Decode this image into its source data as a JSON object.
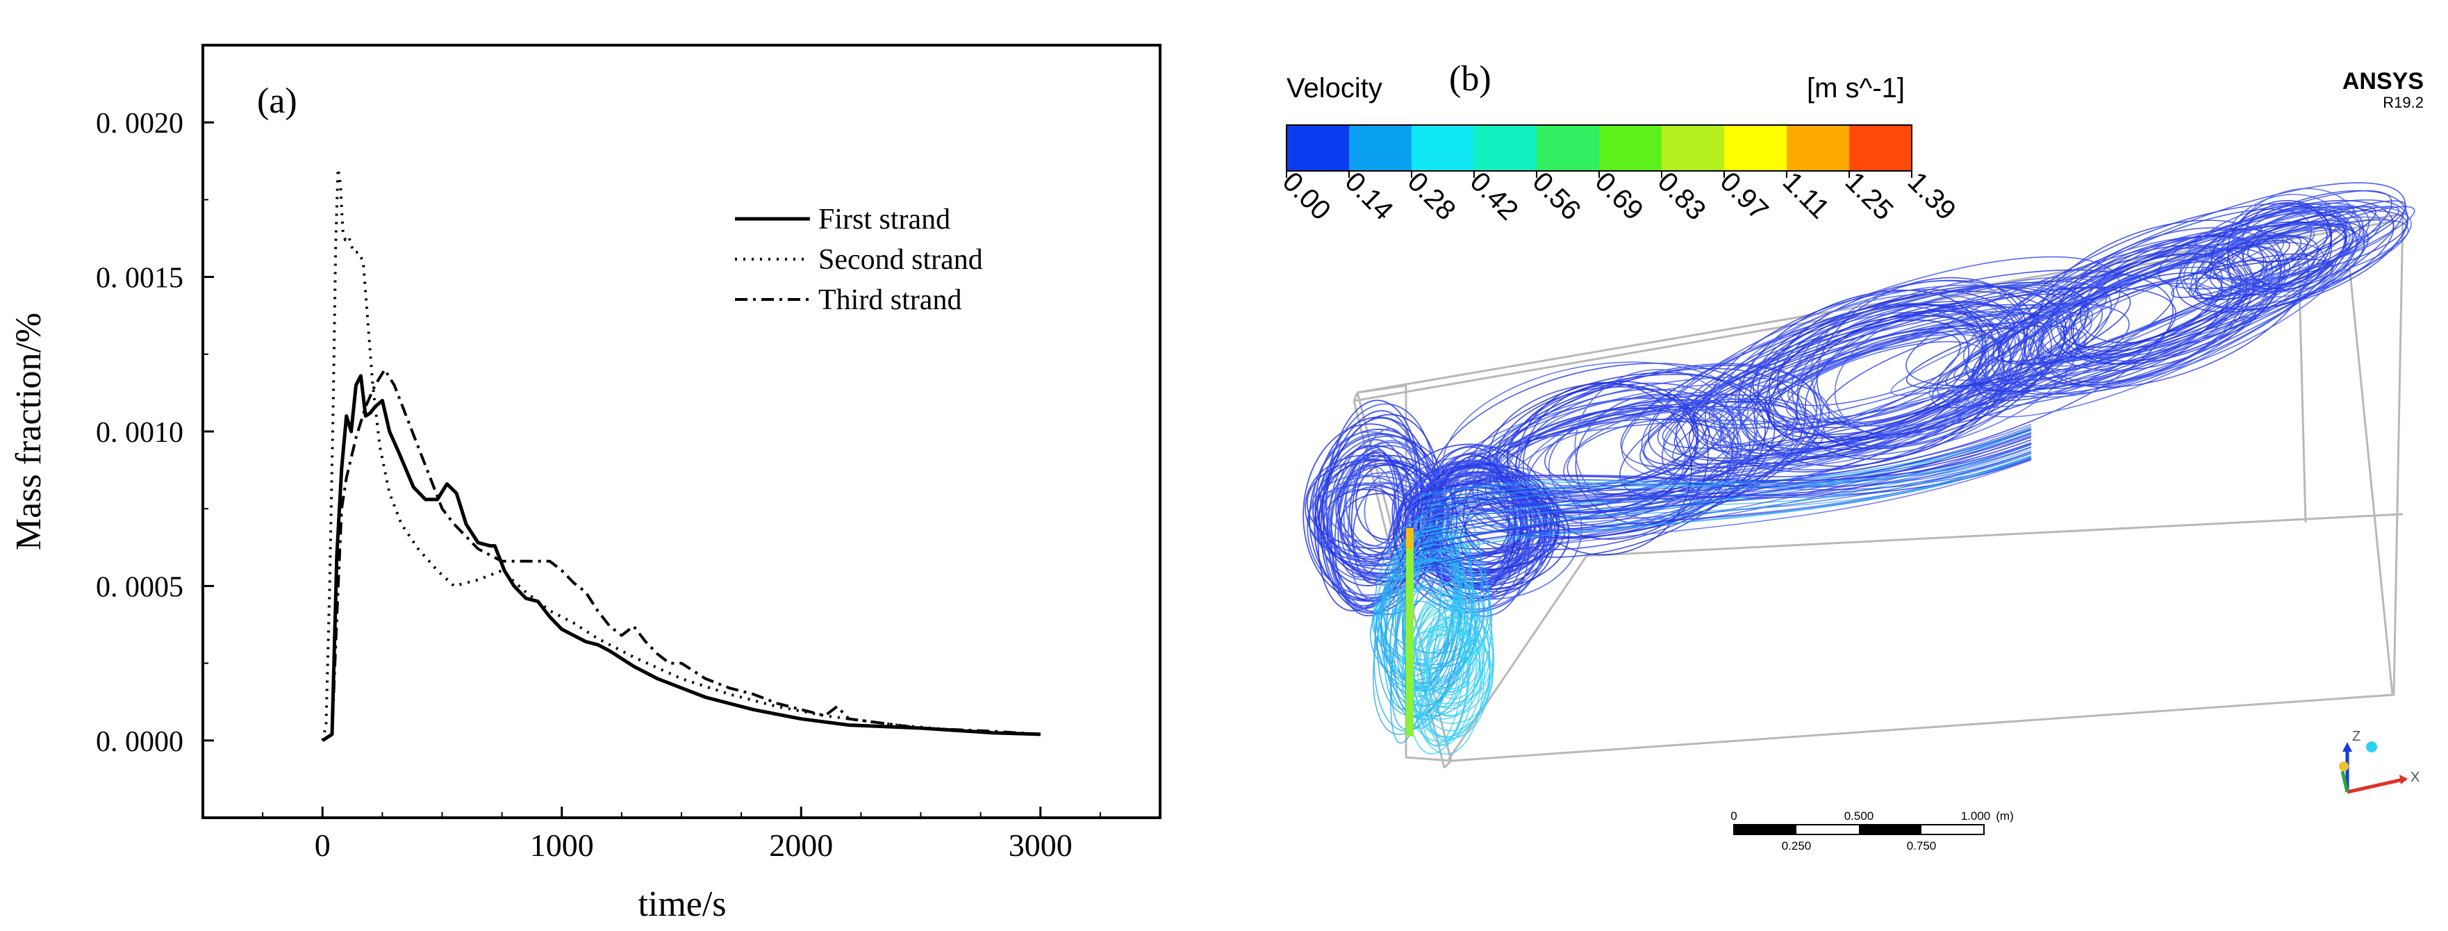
{
  "chart_data": [
    {
      "type": "line",
      "panel_label": "(a)",
      "xlabel": "time/s",
      "ylabel": "Mass fraction/%",
      "xlim": [
        -500,
        3500
      ],
      "ylim": [
        -0.00025,
        0.00225
      ],
      "xticks": [
        0,
        1000,
        2000,
        3000
      ],
      "xtick_labels": [
        "0",
        "1000",
        "2000",
        "3000"
      ],
      "yticks": [
        0.0,
        0.0005,
        0.001,
        0.0015,
        0.002
      ],
      "ytick_labels": [
        "0. 0000",
        "0. 0005",
        "0. 0010",
        "0. 0015",
        "0. 0020"
      ],
      "legend_position": "top-right",
      "series": [
        {
          "name": "First strand",
          "style": "solid",
          "x": [
            0,
            40,
            60,
            80,
            100,
            120,
            140,
            160,
            180,
            200,
            220,
            250,
            280,
            320,
            380,
            430,
            480,
            520,
            560,
            600,
            650,
            700,
            720,
            760,
            800,
            850,
            900,
            950,
            1000,
            1050,
            1100,
            1150,
            1200,
            1300,
            1400,
            1500,
            1600,
            1800,
            2000,
            2200,
            2500,
            2800,
            3000
          ],
          "y": [
            0,
            2e-05,
            0.0006,
            0.00088,
            0.00105,
            0.001,
            0.00115,
            0.00118,
            0.00105,
            0.00106,
            0.00108,
            0.0011,
            0.001,
            0.00093,
            0.00082,
            0.00078,
            0.00078,
            0.00083,
            0.0008,
            0.0007,
            0.00064,
            0.00063,
            0.00063,
            0.00055,
            0.0005,
            0.00046,
            0.00045,
            0.0004,
            0.00036,
            0.00034,
            0.00032,
            0.00031,
            0.00029,
            0.00024,
            0.0002,
            0.00017,
            0.00014,
            0.0001,
            7e-05,
            5e-05,
            4e-05,
            2.5e-05,
            2e-05
          ]
        },
        {
          "name": "Second strand",
          "style": "dotted",
          "x": [
            0,
            15,
            30,
            45,
            55,
            65,
            75,
            85,
            95,
            110,
            130,
            150,
            170,
            190,
            210,
            240,
            280,
            330,
            400,
            480,
            550,
            650,
            750,
            850,
            950,
            1050,
            1150,
            1300,
            1500,
            1700,
            1900,
            2100,
            2400,
            2700,
            3000
          ],
          "y": [
            0,
            5e-05,
            0.0005,
            0.0011,
            0.0016,
            0.00185,
            0.0018,
            0.00165,
            0.00162,
            0.00163,
            0.00158,
            0.00158,
            0.00155,
            0.00135,
            0.00115,
            0.00095,
            0.0008,
            0.0007,
            0.00062,
            0.00055,
            0.0005,
            0.00052,
            0.00055,
            0.00048,
            0.00042,
            0.00038,
            0.00033,
            0.00027,
            0.0002,
            0.00015,
            0.00011,
            8e-05,
            5e-05,
            3e-05,
            2e-05
          ]
        },
        {
          "name": "Third strand",
          "style": "dashdot",
          "x": [
            0,
            40,
            60,
            80,
            100,
            140,
            180,
            220,
            260,
            300,
            350,
            400,
            450,
            500,
            550,
            600,
            650,
            700,
            750,
            800,
            900,
            950,
            1000,
            1050,
            1100,
            1150,
            1200,
            1250,
            1300,
            1350,
            1400,
            1450,
            1500,
            1600,
            1700,
            1800,
            1900,
            2000,
            2100,
            2150,
            2200,
            2300,
            2500,
            2800,
            3000
          ],
          "y": [
            0,
            2e-05,
            0.0004,
            0.00075,
            0.00085,
            0.00098,
            0.00108,
            0.00115,
            0.0012,
            0.00115,
            0.00105,
            0.00095,
            0.00085,
            0.00075,
            0.0007,
            0.00066,
            0.00062,
            0.0006,
            0.00058,
            0.00058,
            0.00058,
            0.00058,
            0.00055,
            0.00051,
            0.00048,
            0.00042,
            0.00037,
            0.00034,
            0.00037,
            0.00032,
            0.00028,
            0.00025,
            0.00025,
            0.0002,
            0.00017,
            0.00015,
            0.00012,
            0.0001,
            8e-05,
            0.00011,
            7e-05,
            6e-05,
            4e-05,
            3e-05,
            2e-05
          ]
        }
      ]
    },
    {
      "type": "other",
      "description_kind": "3d-streamline-render",
      "panel_label": "(b)",
      "colorbar": {
        "title": "Velocity",
        "units": "[m s^-1]",
        "tick_labels": [
          "0.00",
          "0.14",
          "0.28",
          "0.42",
          "0.56",
          "0.69",
          "0.83",
          "0.97",
          "1.11",
          "1.25",
          "1.39"
        ],
        "colors": [
          "#0a3cf0",
          "#0aa0f0",
          "#10e8f6",
          "#10f0c0",
          "#30ef60",
          "#5ef01a",
          "#b4f01e",
          "#ffff00",
          "#ffa800",
          "#ff4a0a"
        ]
      },
      "logo": {
        "name": "ANSYS",
        "version": "R19.2"
      },
      "scale_bar": {
        "top_labels": [
          "0",
          "0.500",
          "1.000",
          "(m)"
        ],
        "bottom_labels": [
          "0.250",
          "0.750"
        ]
      },
      "triad_labels": [
        "Z",
        "X"
      ],
      "streamline_color": "#2a3be6"
    }
  ]
}
